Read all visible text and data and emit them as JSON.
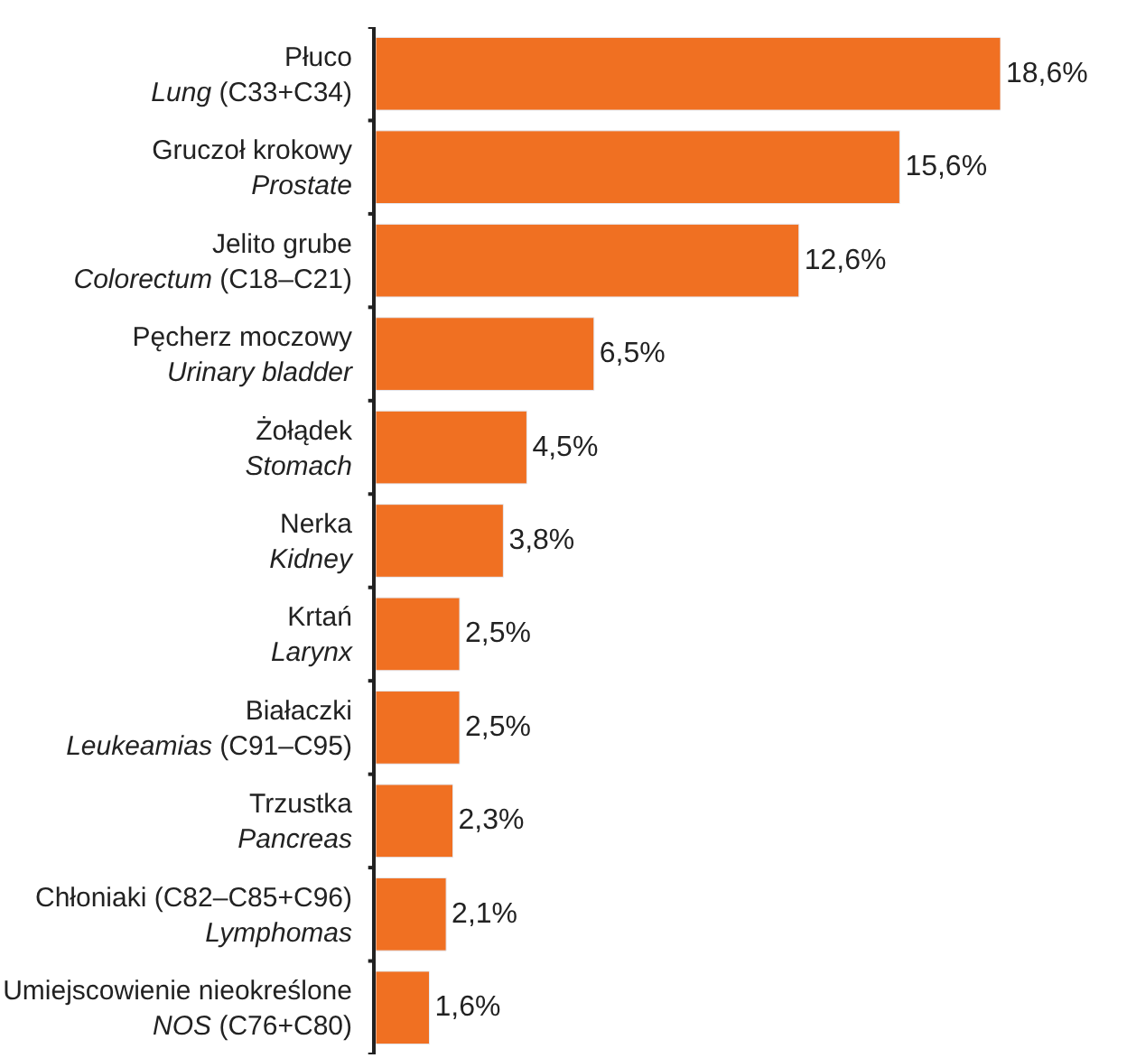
{
  "chart_data": {
    "type": "bar",
    "orientation": "horizontal",
    "categories": [
      "Płuco\nLung (C33+C34)",
      "Gruczoł krokowy\nProstate",
      "Jelito grube\nColorectum (C18–C21)",
      "Pęcherz moczowy\nUrinary bladder",
      "Żołądek\nStomach",
      "Nerka\nKidney",
      "Krtań\nLarynx",
      "Białaczki\nLeukeamias (C91–C95)",
      "Trzustka\nPancreas",
      "Chłoniaki (C82–C85+C96)\nLymphomas",
      "Umiejscowienie nieokreślone\nNOS (C76+C80)"
    ],
    "values": [
      18.6,
      15.6,
      12.6,
      6.5,
      4.5,
      3.8,
      2.5,
      2.5,
      2.3,
      2.1,
      1.6
    ],
    "value_labels": [
      "18,6%",
      "15,6%",
      "12,6%",
      "6,5%",
      "4,5%",
      "3,8%",
      "2,5%",
      "2,5%",
      "2,3%",
      "2,1%",
      "1,6%"
    ],
    "color": "#f07022"
  }
}
